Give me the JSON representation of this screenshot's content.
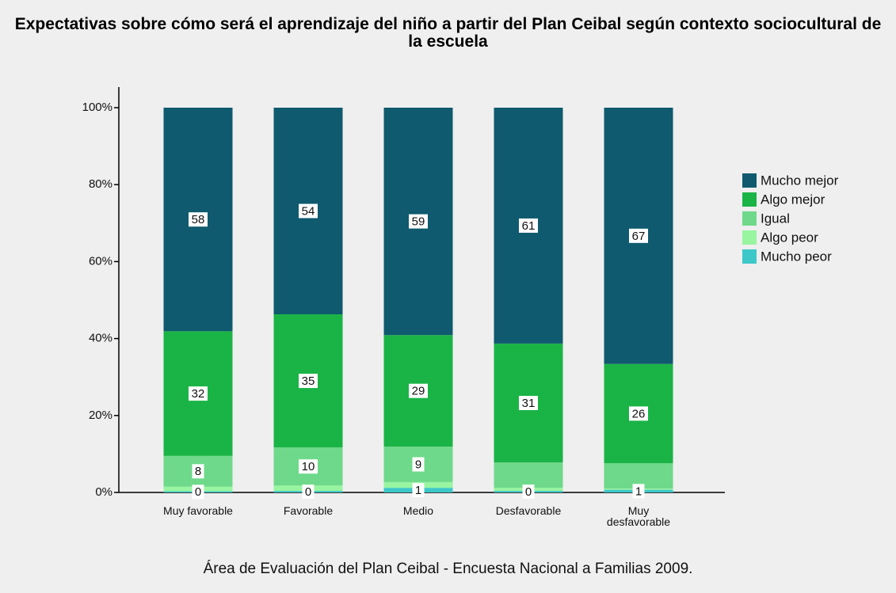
{
  "chart_data": {
    "type": "stacked_bar",
    "title": "Expectativas sobre cómo será el aprendizaje del niño a partir del Plan Ceibal según contexto sociocultural de la escuela",
    "categories": [
      "Muy favorable",
      "Favorable",
      "Medio",
      "Desfavorable",
      "Muy desfavorable"
    ],
    "series": [
      {
        "name": "Mucho mejor",
        "color": "#0f5a6e",
        "values": [
          58.1,
          53.7,
          59.1,
          61.3,
          66.6
        ],
        "value_labels": [
          "58",
          "54",
          "59",
          "61",
          "67"
        ]
      },
      {
        "name": "Algo mejor",
        "color": "#1ab446",
        "values": [
          32.4,
          34.6,
          29.0,
          30.9,
          25.8
        ],
        "value_labels": [
          "32",
          "35",
          "29",
          "31",
          "26"
        ]
      },
      {
        "name": "Igual",
        "color": "#6ed98a",
        "values": [
          8.0,
          9.9,
          9.2,
          6.6,
          6.6
        ],
        "value_labels": [
          "8",
          "10",
          "9",
          null,
          null
        ]
      },
      {
        "name": "Algo peor",
        "color": "#98f5a0",
        "values": [
          1.2,
          1.4,
          1.5,
          0.8,
          0.3
        ],
        "value_labels": [
          null,
          null,
          null,
          null,
          null
        ]
      },
      {
        "name": "Mucho peor",
        "color": "#3cc8c8",
        "values": [
          0.3,
          0.4,
          1.2,
          0.4,
          0.7
        ],
        "value_labels": [
          "0",
          "0",
          "1",
          "0",
          "1"
        ]
      }
    ],
    "ylim": [
      0,
      100
    ],
    "yticks": [
      {
        "value": 0,
        "label": "0%"
      },
      {
        "value": 20,
        "label": "20%"
      },
      {
        "value": 40,
        "label": "40%"
      },
      {
        "value": 60,
        "label": "60%"
      },
      {
        "value": 80,
        "label": "80%"
      },
      {
        "value": 100,
        "label": "100%"
      }
    ],
    "legend": "right",
    "source": "Área de Evaluación del Plan Ceibal - Encuesta Nacional a Familias 2009."
  }
}
